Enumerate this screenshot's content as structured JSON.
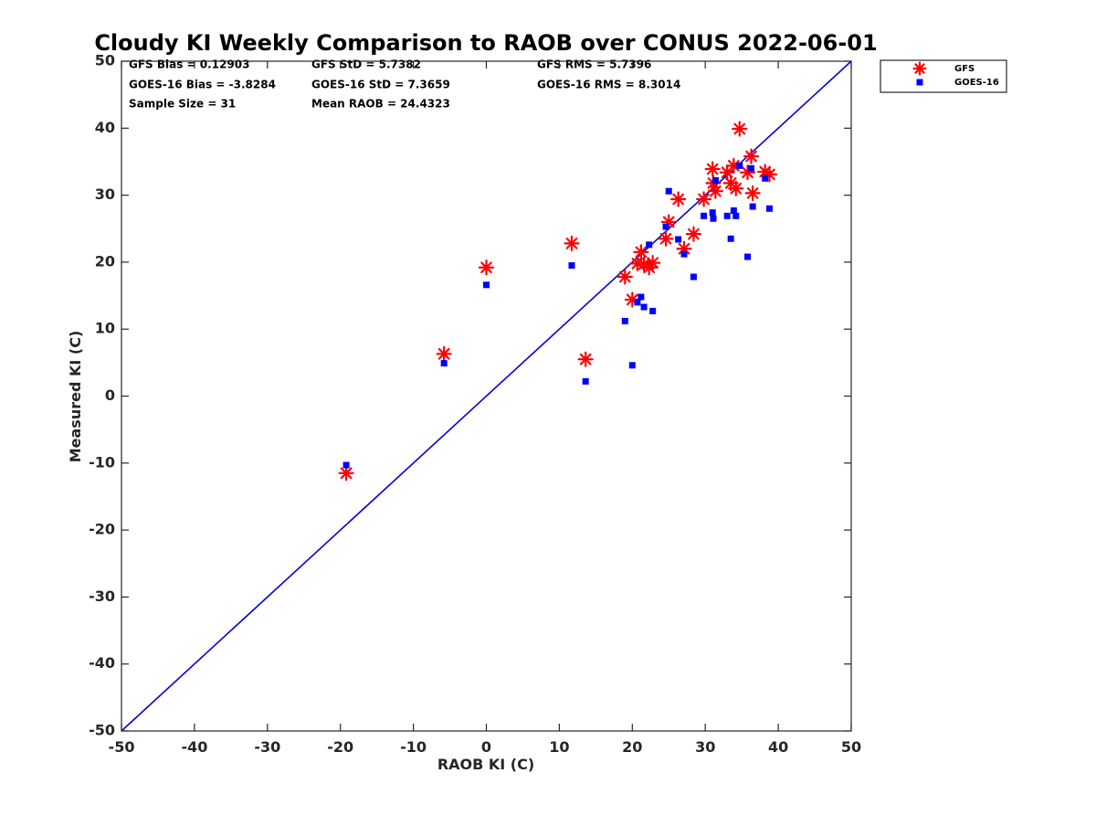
{
  "chart_data": {
    "type": "scatter",
    "title": "Cloudy KI Weekly Comparison to RAOB over CONUS 2022-06-01",
    "xlabel": "RAOB KI (C)",
    "ylabel": "Measured KI (C)",
    "xlim": [
      -50,
      50
    ],
    "ylim": [
      -50,
      50
    ],
    "xticks": [
      -50,
      -40,
      -30,
      -20,
      -10,
      0,
      10,
      20,
      30,
      40,
      50
    ],
    "yticks": [
      -50,
      -40,
      -30,
      -20,
      -10,
      0,
      10,
      20,
      30,
      40,
      50
    ],
    "grid": false,
    "legend_position": "top-right, outside plot",
    "stats": [
      [
        "GFS Bias = 0.12903",
        "GFS StD = 5.7382",
        "GFS RMS = 5.7396"
      ],
      [
        "GOES-16 Bias = -3.8284",
        "GOES-16 StD = 7.3659",
        "GOES-16 RMS = 8.3014"
      ],
      [
        "Sample Size = 31",
        "Mean RAOB = 24.4323",
        ""
      ]
    ],
    "reference_line": {
      "from": [
        -50,
        -50
      ],
      "to": [
        50,
        50
      ],
      "color": "#0000dd"
    },
    "series": [
      {
        "name": "GFS",
        "marker": "asterisk",
        "color": "#ff0000",
        "points": [
          [
            -19.2,
            -11.5
          ],
          [
            -5.8,
            6.3
          ],
          [
            0.0,
            19.2
          ],
          [
            11.7,
            22.8
          ],
          [
            13.6,
            5.5
          ],
          [
            19.0,
            17.8
          ],
          [
            20.0,
            14.4
          ],
          [
            20.7,
            19.8
          ],
          [
            21.2,
            21.5
          ],
          [
            21.6,
            19.7
          ],
          [
            22.3,
            19.2
          ],
          [
            22.8,
            19.9
          ],
          [
            24.6,
            23.5
          ],
          [
            25.0,
            26.0
          ],
          [
            26.3,
            29.4
          ],
          [
            27.1,
            22.0
          ],
          [
            28.4,
            24.2
          ],
          [
            29.8,
            29.4
          ],
          [
            31.0,
            33.9
          ],
          [
            31.1,
            31.8
          ],
          [
            31.4,
            30.6
          ],
          [
            33.0,
            33.4
          ],
          [
            33.5,
            31.8
          ],
          [
            33.9,
            34.4
          ],
          [
            34.2,
            31.0
          ],
          [
            34.7,
            39.9
          ],
          [
            35.8,
            33.4
          ],
          [
            36.3,
            35.8
          ],
          [
            36.5,
            30.3
          ],
          [
            38.2,
            33.5
          ],
          [
            38.8,
            33.1
          ]
        ]
      },
      {
        "name": "GOES-16",
        "marker": "square",
        "color": "#0000ff",
        "points": [
          [
            -19.2,
            -10.3
          ],
          [
            -5.8,
            4.9
          ],
          [
            0.0,
            16.6
          ],
          [
            11.7,
            19.5
          ],
          [
            13.6,
            2.2
          ],
          [
            19.0,
            11.2
          ],
          [
            20.0,
            4.6
          ],
          [
            20.7,
            14.0
          ],
          [
            21.2,
            14.8
          ],
          [
            21.6,
            13.3
          ],
          [
            22.3,
            22.6
          ],
          [
            22.8,
            12.7
          ],
          [
            24.6,
            25.3
          ],
          [
            25.0,
            30.6
          ],
          [
            26.3,
            23.4
          ],
          [
            27.1,
            21.2
          ],
          [
            28.4,
            17.8
          ],
          [
            29.8,
            26.9
          ],
          [
            31.0,
            27.4
          ],
          [
            31.1,
            26.5
          ],
          [
            31.4,
            32.2
          ],
          [
            33.0,
            26.9
          ],
          [
            33.5,
            23.5
          ],
          [
            33.9,
            27.7
          ],
          [
            34.2,
            26.9
          ],
          [
            34.7,
            34.4
          ],
          [
            35.8,
            20.8
          ],
          [
            36.3,
            34.0
          ],
          [
            36.5,
            28.3
          ],
          [
            38.2,
            32.5
          ],
          [
            38.8,
            28.0
          ]
        ]
      }
    ]
  }
}
